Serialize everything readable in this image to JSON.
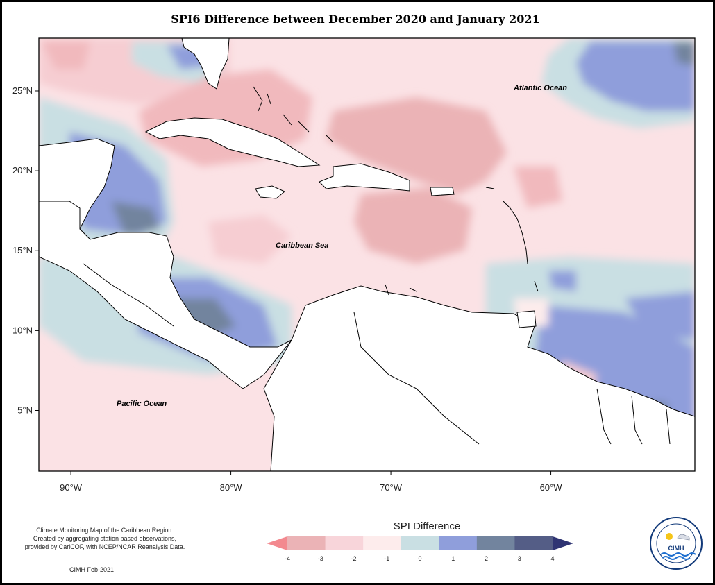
{
  "title": "SPI6 Difference between December 2020 and January 2021",
  "map": {
    "lon_range": [
      -92,
      -51
    ],
    "lat_range": [
      1.2,
      28.3
    ],
    "x_ticks": [
      {
        "value": -90,
        "label": "90°W"
      },
      {
        "value": -80,
        "label": "80°W"
      },
      {
        "value": -70,
        "label": "70°W"
      },
      {
        "value": -60,
        "label": "60°W"
      }
    ],
    "y_ticks": [
      {
        "value": 25,
        "label": "25°N"
      },
      {
        "value": 20,
        "label": "20°N"
      },
      {
        "value": 15,
        "label": "15°N"
      },
      {
        "value": 10,
        "label": "10°N"
      },
      {
        "value": 5,
        "label": "5°N"
      }
    ],
    "labels": {
      "atlantic": "Atlantic Ocean",
      "caribbean": "Caribbean Sea",
      "pacific": "Pacific Ocean"
    }
  },
  "legend": {
    "title": "SPI Difference",
    "ticks": [
      "-4",
      "-3",
      "-2",
      "-1",
      "0",
      "1",
      "2",
      "3",
      "4"
    ],
    "colors": [
      "#f3898f",
      "#ebb3b6",
      "#f8d5da",
      "#fdecec",
      "#c9dfe3",
      "#8f9edb",
      "#72849e",
      "#545d86",
      "#2f3473"
    ]
  },
  "credits": {
    "line1": "Climate Monitoring Map of the Caribbean Region.",
    "line2": "Created by aggregating station based observations,",
    "line3": "provided by CariCOF, with NCEP/NCAR Reanalysis Data.",
    "issued": "CIMH Feb-2021"
  },
  "logo": {
    "text": "CIMH",
    "ring_text": "Caribbean Institute for Meteorology and Hydrology"
  }
}
